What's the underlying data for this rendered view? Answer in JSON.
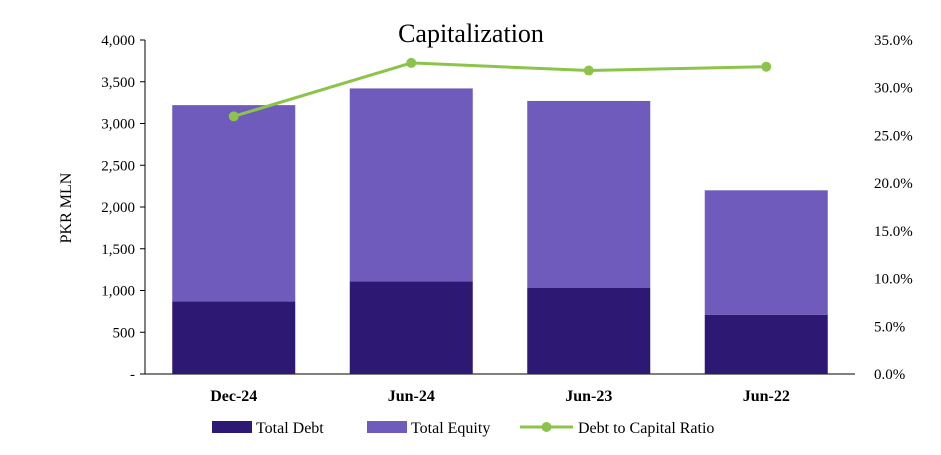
{
  "chart_data": {
    "type": "bar",
    "title": "Capitalization",
    "ylabel": "PKR MLN",
    "categories": [
      "Dec-24",
      "Jun-24",
      "Jun-23",
      "Jun-22"
    ],
    "ylim": [
      0,
      4000
    ],
    "y_ticks": [
      "-",
      "500",
      "1,000",
      "1,500",
      "2,000",
      "2,500",
      "3,000",
      "3,500",
      "4,000"
    ],
    "y2lim": [
      0,
      35
    ],
    "y2_ticks": [
      "0.0%",
      "5.0%",
      "10.0%",
      "15.0%",
      "20.0%",
      "25.0%",
      "30.0%",
      "35.0%"
    ],
    "series": [
      {
        "name": "Total Debt",
        "kind": "stacked-bar",
        "color": "#2d1874",
        "values": [
          870,
          1110,
          1030,
          710
        ]
      },
      {
        "name": "Total Equity",
        "kind": "stacked-bar",
        "color": "#6f5bbb",
        "values": [
          2350,
          2310,
          2240,
          1490
        ]
      },
      {
        "name": "Debt to Capital Ratio",
        "kind": "line",
        "axis": "right",
        "color": "#8cc34a",
        "values": [
          27.0,
          32.6,
          31.8,
          32.2
        ]
      }
    ],
    "legend_position": "bottom",
    "grid": false
  }
}
